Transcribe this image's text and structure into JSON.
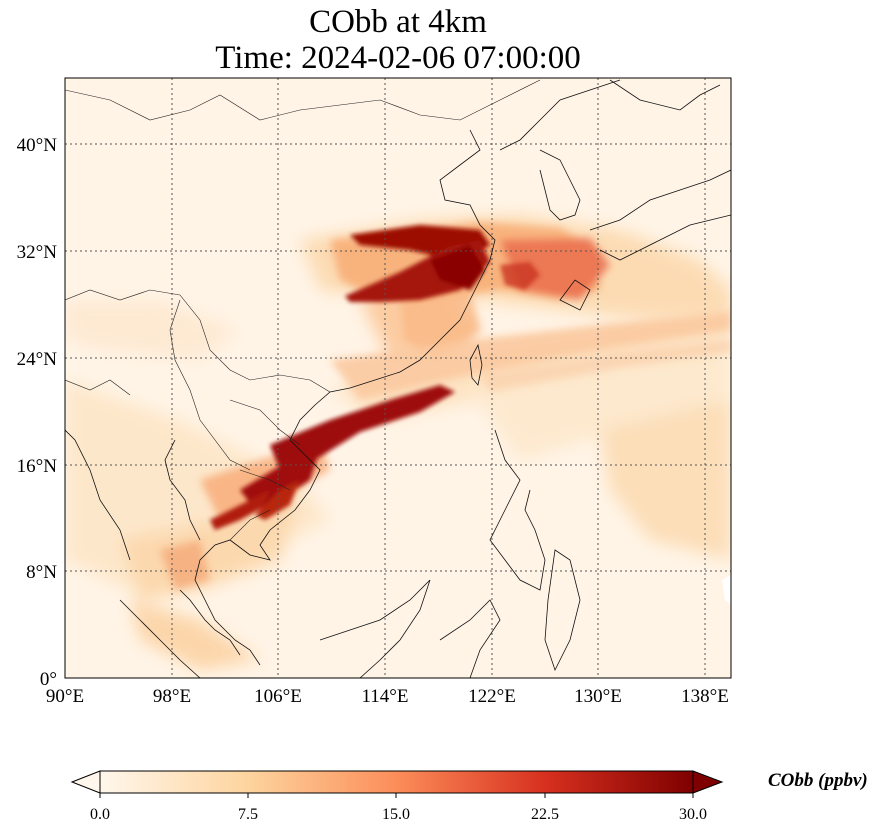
{
  "title": {
    "line1": "CObb at 4km",
    "line2": "Time: 2024-02-06 07:00:00"
  },
  "map": {
    "lon_range": [
      90,
      140
    ],
    "lat_range": [
      0,
      45
    ],
    "lon_ticks": [
      {
        "value": 90,
        "label": "90°E"
      },
      {
        "value": 98,
        "label": "98°E"
      },
      {
        "value": 106,
        "label": "106°E"
      },
      {
        "value": 114,
        "label": "114°E"
      },
      {
        "value": 122,
        "label": "122°E"
      },
      {
        "value": 130,
        "label": "130°E"
      },
      {
        "value": 138,
        "label": "138°E"
      }
    ],
    "lat_ticks": [
      {
        "value": 0,
        "label": "0°"
      },
      {
        "value": 8,
        "label": "8°N"
      },
      {
        "value": 16,
        "label": "16°N"
      },
      {
        "value": 24,
        "label": "24°N"
      },
      {
        "value": 32,
        "label": "32°N"
      },
      {
        "value": 40,
        "label": "40°N"
      }
    ],
    "gridlines": true,
    "colormap": "OrRd",
    "background_color": "#fff4e6"
  },
  "colorbar": {
    "label": "CObb (ppbv)",
    "min": 0.0,
    "max": 30.0,
    "extend": "both",
    "ticks": [
      {
        "value": 0.0,
        "label": "0.0"
      },
      {
        "value": 7.5,
        "label": "7.5"
      },
      {
        "value": 15.0,
        "label": "15.0"
      },
      {
        "value": 22.5,
        "label": "22.5"
      },
      {
        "value": 30.0,
        "label": "30.0"
      }
    ],
    "colors": [
      "#fff7ec",
      "#fdd49e",
      "#fc8d59",
      "#d7301f",
      "#7f0000"
    ]
  }
}
